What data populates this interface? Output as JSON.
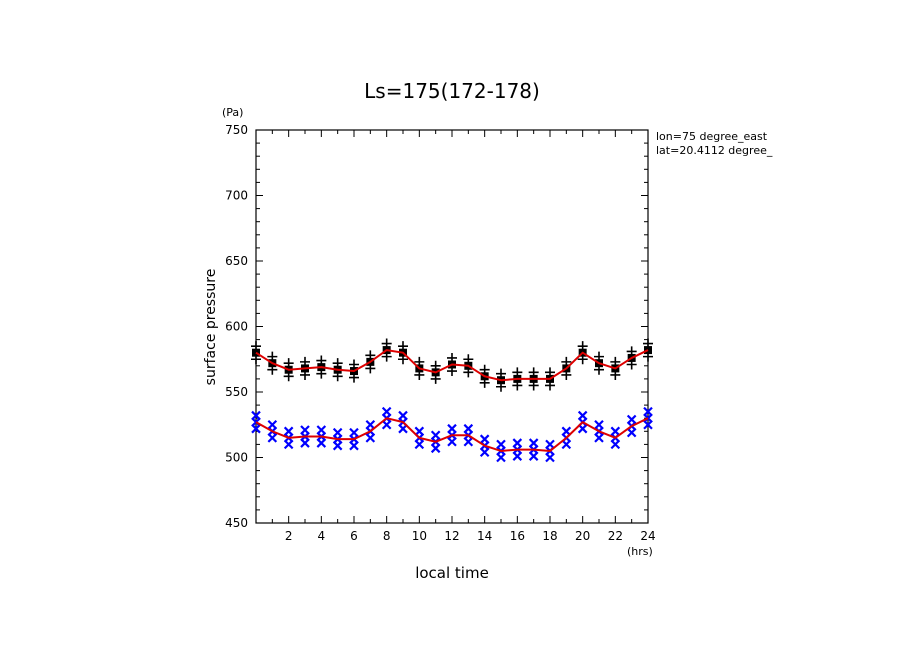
{
  "chart_data": {
    "type": "line",
    "title": "Ls=175(172-178)",
    "xlabel": "local time",
    "ylabel": "surface pressure",
    "x_unit": "(hrs)",
    "y_unit": "(Pa)",
    "annotations": [
      "lon=75 degree_east",
      "lat=20.4112 degree_"
    ],
    "xlim": [
      0,
      24
    ],
    "ylim": [
      450,
      750
    ],
    "x_ticks": [
      2,
      4,
      6,
      8,
      10,
      12,
      14,
      16,
      18,
      20,
      22,
      24
    ],
    "y_ticks": [
      450,
      500,
      550,
      600,
      650,
      700,
      750
    ],
    "grid": false,
    "series": [
      {
        "marker": "square-plus",
        "color": "#000000",
        "line_color": "#dd0000",
        "x": [
          0,
          1,
          2,
          3,
          4,
          5,
          6,
          7,
          8,
          9,
          10,
          11,
          12,
          13,
          14,
          15,
          16,
          17,
          18,
          19,
          20,
          21,
          22,
          23,
          24
        ],
        "values": [
          580,
          572,
          567,
          568,
          569,
          567,
          566,
          573,
          582,
          580,
          568,
          565,
          571,
          570,
          562,
          559,
          560,
          560,
          560,
          568,
          580,
          572,
          568,
          576,
          582
        ]
      },
      {
        "marker": "x",
        "color": "#0000ff",
        "line_color": "#dd0000",
        "x": [
          0,
          1,
          2,
          3,
          4,
          5,
          6,
          7,
          8,
          9,
          10,
          11,
          12,
          13,
          14,
          15,
          16,
          17,
          18,
          19,
          20,
          21,
          22,
          23,
          24
        ],
        "values": [
          527,
          520,
          515,
          516,
          516,
          514,
          514,
          520,
          530,
          527,
          515,
          512,
          517,
          517,
          509,
          505,
          506,
          506,
          505,
          515,
          527,
          520,
          515,
          524,
          530
        ]
      }
    ]
  }
}
